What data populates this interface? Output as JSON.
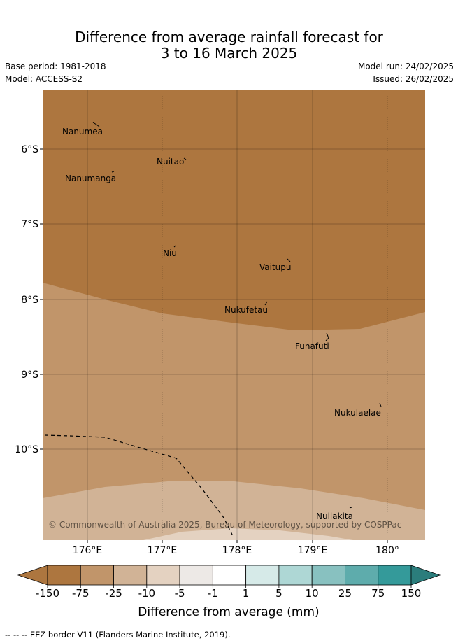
{
  "title": {
    "line1": "Difference from average rainfall forecast for",
    "line2": "3 to 16 March 2025"
  },
  "meta": {
    "base_period": "Base period: 1981-2018",
    "model": "Model: ACCESS-S2",
    "model_run": "Model run: 24/02/2025",
    "issued": "Issued: 26/02/2025"
  },
  "map": {
    "longitude_ticks": [
      "176°E",
      "177°E",
      "178°E",
      "179°E",
      "180°"
    ],
    "latitude_ticks": [
      "6°S",
      "7°S",
      "8°S",
      "9°S",
      "10°S"
    ],
    "places": [
      "Nanumea",
      "Nuitao",
      "Nanumanga",
      "Niu",
      "Vaitupu",
      "Nukufetau",
      "Funafuti",
      "Nukulaelae",
      "Nuilakita"
    ],
    "copyright": "© Commonwealth of Australia 2025, Bureau of Meteorology, supported by COSPPac",
    "dominant_category_north": "-150 to -75",
    "dominant_category_central": "-75 to -25",
    "dominant_category_south": "-25 to -10"
  },
  "legend": {
    "tick_labels": [
      "-150",
      "-75",
      "-25",
      "-10",
      "-5",
      "-1",
      "1",
      "5",
      "10",
      "25",
      "75",
      "150"
    ],
    "colors": [
      "#ad763f",
      "#ad763f",
      "#c1956a",
      "#d1b396",
      "#e4d2c1",
      "#ede9e6",
      "#ffffff",
      "#d6eae8",
      "#aed7d5",
      "#88c1c0",
      "#5eacac",
      "#349a9a",
      "#2b7d7c"
    ],
    "title": "Difference from average (mm)"
  },
  "footer": "-- -- -- EEZ border V11 (Flanders Marine Institute, 2019)."
}
